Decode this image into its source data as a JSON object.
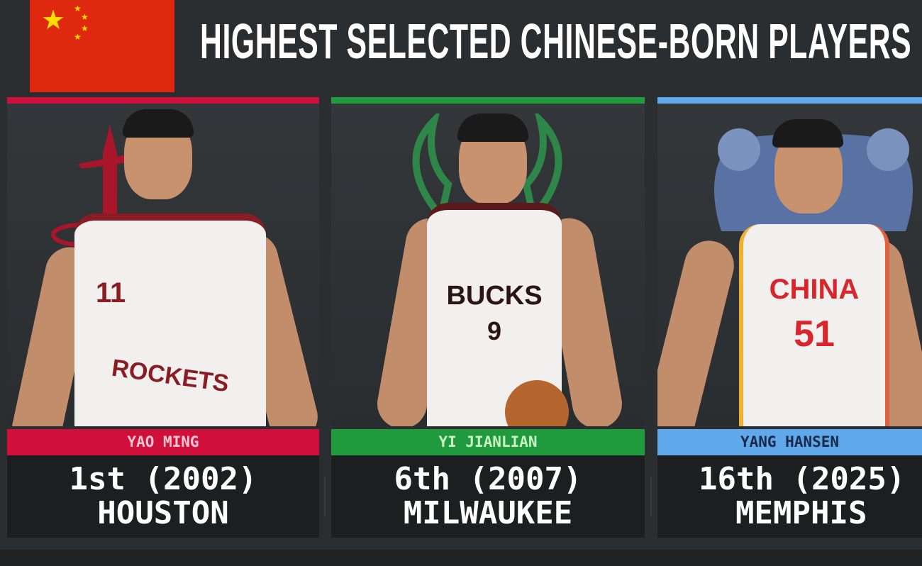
{
  "title": "HIGHEST SELECTED CHINESE-BORN PLAYERS",
  "flag_icon": "china-flag",
  "players": [
    {
      "name": "YAO MING",
      "pick": "1st (2002)",
      "team": "HOUSTON",
      "color": "#d0103a",
      "name_color": "#f7c6d2",
      "logo_icon": "rockets-logo",
      "jersey_team": "ROCKETS",
      "jersey_number": "11",
      "jersey_text_color": "#8a1c24"
    },
    {
      "name": "YI JIANLIAN",
      "pick": "6th (2007)",
      "team": "MILWAUKEE",
      "color": "#1f9a3d",
      "name_color": "#c9f2c5",
      "logo_icon": "bucks-antlers-logo",
      "jersey_team": "BUCKS",
      "jersey_number": "9",
      "jersey_text_color": "#2a1512"
    },
    {
      "name": "YANG HANSEN",
      "pick": "16th (2025)",
      "team": "MEMPHIS",
      "color": "#5fa9ea",
      "name_color": "#1b2a4a",
      "logo_icon": "grizzlies-logo",
      "jersey_team": "CHINA",
      "jersey_number": "51",
      "jersey_text_color": "#d8262c"
    }
  ]
}
